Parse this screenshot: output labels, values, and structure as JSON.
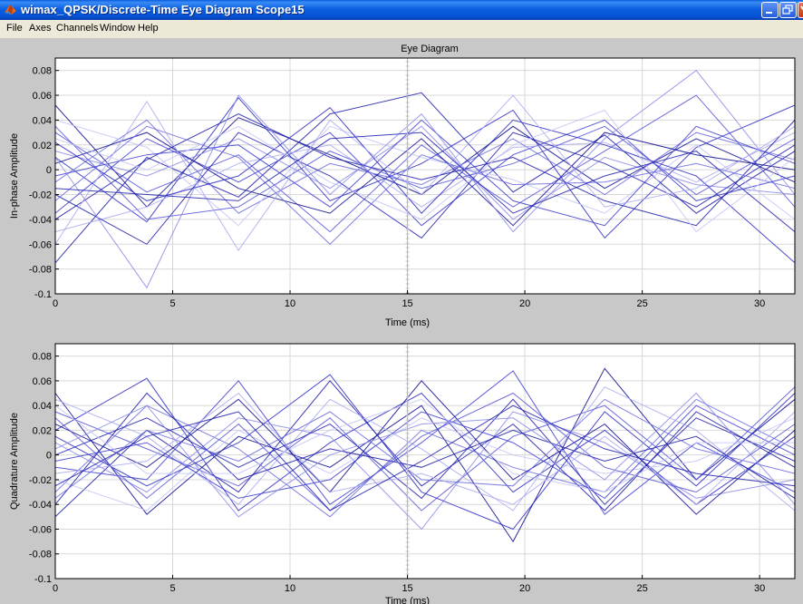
{
  "window": {
    "title": "wimax_QPSK/Discrete-Time Eye Diagram Scope15"
  },
  "menu": [
    "File",
    "Axes",
    "Channels",
    "Window",
    "Help"
  ],
  "figure": {
    "title": "Eye Diagram"
  },
  "chart_data": [
    {
      "type": "line",
      "title": "Eye Diagram",
      "xlabel": "Time (ms)",
      "ylabel": "In-phase Amplitude",
      "xlim": [
        0,
        31.5
      ],
      "ylim": [
        -0.1,
        0.09
      ],
      "xticks": [
        0,
        5,
        10,
        15,
        20,
        25,
        30
      ],
      "yticks": [
        -0.1,
        -0.08,
        -0.06,
        -0.04,
        -0.02,
        0,
        0.02,
        0.04,
        0.06,
        0.08
      ],
      "ytick_labels": [
        "-0.1",
        "-0.08",
        "-0.06",
        "-0.04",
        "-0.02",
        "0",
        "0.02",
        "0.04",
        "0.06",
        "0.08"
      ],
      "grid": true,
      "x": [
        0,
        3.9,
        7.8,
        11.7,
        15.6,
        19.5,
        23.4,
        27.3,
        31.5
      ],
      "series": [
        {
          "values": [
            0.052,
            -0.03,
            0.042,
            0.012,
            -0.02,
            0.035,
            -0.015,
            0.025,
            -0.01
          ]
        },
        {
          "values": [
            -0.075,
            0.01,
            -0.022,
            0.045,
            0.062,
            -0.018,
            0.028,
            -0.035,
            0.015
          ]
        },
        {
          "values": [
            0.01,
            -0.042,
            0.058,
            -0.025,
            0.005,
            0.048,
            -0.055,
            0.018,
            0.052
          ]
        },
        {
          "values": [
            -0.035,
            0.025,
            -0.01,
            0.03,
            -0.045,
            0.012,
            0.04,
            -0.025,
            -0.005
          ]
        },
        {
          "values": [
            0.03,
            -0.018,
            0.012,
            -0.05,
            0.02,
            -0.03,
            0.015,
            0.06,
            -0.03
          ]
        },
        {
          "values": [
            -0.01,
            0.04,
            -0.035,
            0.005,
            -0.012,
            0.025,
            -0.02,
            0.03,
            0.008
          ]
        },
        {
          "values": [
            0.015,
            -0.005,
            0.025,
            -0.015,
            0.035,
            -0.04,
            0.01,
            -0.012,
            -0.02
          ]
        },
        {
          "values": [
            -0.05,
            -0.03,
            0.005,
            0.02,
            -0.03,
            0.018,
            0.022,
            -0.01,
            0.03
          ]
        },
        {
          "values": [
            0.04,
            0.018,
            -0.045,
            0.035,
            0.01,
            -0.008,
            -0.035,
            0.02,
            -0.04
          ]
        },
        {
          "values": [
            -0.02,
            -0.06,
            0.03,
            -0.005,
            -0.055,
            0.03,
            0.005,
            -0.03,
            0.02
          ]
        },
        {
          "values": [
            0.005,
            0.03,
            -0.015,
            -0.035,
            0.025,
            -0.045,
            0.03,
            0.012,
            0.0
          ]
        },
        {
          "values": [
            -0.04,
            0.008,
            0.045,
            0.01,
            -0.008,
            0.01,
            -0.025,
            -0.045,
            0.04
          ]
        },
        {
          "values": [
            0.022,
            -0.025,
            -0.005,
            0.05,
            -0.035,
            0.04,
            0.02,
            -0.005,
            -0.075
          ]
        },
        {
          "values": [
            -0.005,
            0.012,
            0.02,
            -0.03,
            0.04,
            -0.025,
            -0.045,
            0.035,
            0.005
          ]
        },
        {
          "values": [
            0.035,
            -0.04,
            -0.03,
            0.015,
            -0.015,
            0.005,
            0.035,
            -0.02,
            0.025
          ]
        },
        {
          "values": [
            -0.025,
            0.035,
            0.01,
            -0.06,
            0.012,
            -0.012,
            -0.01,
            0.005,
            -0.015
          ]
        },
        {
          "values": [
            0.01,
            -0.095,
            0.06,
            -0.02,
            0.045,
            -0.05,
            0.025,
            0.08,
            -0.02
          ]
        },
        {
          "values": [
            -0.06,
            0.055,
            -0.065,
            0.04,
            -0.02,
            0.06,
            -0.03,
            -0.015,
            0.035
          ]
        },
        {
          "values": [
            0.025,
            0.0,
            0.035,
            -0.01,
            -0.04,
            0.02,
            0.048,
            -0.05,
            0.01
          ]
        },
        {
          "values": [
            -0.015,
            -0.02,
            -0.025,
            0.025,
            0.03,
            -0.035,
            -0.005,
            0.015,
            -0.05
          ]
        }
      ]
    },
    {
      "type": "line",
      "title": "",
      "xlabel": "Time (ms)",
      "ylabel": "Quadrature Amplitude",
      "xlim": [
        0,
        31.5
      ],
      "ylim": [
        -0.1,
        0.09
      ],
      "xticks": [
        0,
        5,
        10,
        15,
        20,
        25,
        30
      ],
      "yticks": [
        -0.1,
        -0.08,
        -0.06,
        -0.04,
        -0.02,
        0,
        0.02,
        0.04,
        0.06,
        0.08
      ],
      "ytick_labels": [
        "-0.1",
        "-0.08",
        "-0.06",
        "-0.04",
        "-0.02",
        "0",
        "0.02",
        "0.04",
        "0.06",
        "0.08"
      ],
      "grid": true,
      "x": [
        0,
        3.9,
        7.8,
        11.7,
        15.6,
        19.5,
        23.4,
        27.3,
        31.5
      ],
      "series": [
        {
          "values": [
            0.05,
            -0.048,
            0.015,
            -0.01,
            0.04,
            -0.07,
            0.07,
            -0.02,
            0.045
          ]
        },
        {
          "values": [
            -0.05,
            0.02,
            -0.03,
            0.06,
            -0.025,
            0.025,
            -0.045,
            0.035,
            -0.01
          ]
        },
        {
          "values": [
            0.02,
            0.062,
            -0.045,
            0.01,
            0.05,
            -0.03,
            0.02,
            -0.04,
            0.015
          ]
        },
        {
          "values": [
            -0.01,
            -0.02,
            0.06,
            -0.04,
            0.01,
            0.068,
            -0.048,
            0.01,
            -0.03
          ]
        },
        {
          "values": [
            0.035,
            0.005,
            -0.025,
            0.03,
            -0.045,
            0.015,
            0.04,
            -0.02,
            0.055
          ]
        },
        {
          "values": [
            -0.03,
            0.04,
            0.005,
            -0.05,
            0.02,
            -0.01,
            -0.03,
            0.045,
            0.005
          ]
        },
        {
          "values": [
            0.01,
            -0.03,
            0.03,
            0.015,
            -0.06,
            0.035,
            0.01,
            -0.035,
            -0.02
          ]
        },
        {
          "values": [
            0.045,
            0.015,
            -0.04,
            0.045,
            0.005,
            -0.045,
            0.055,
            0.02,
            -0.045
          ]
        },
        {
          "values": [
            -0.02,
            -0.045,
            0.02,
            -0.015,
            0.03,
            0.0,
            -0.015,
            -0.005,
            0.03
          ]
        },
        {
          "values": [
            0.0,
            0.03,
            -0.01,
            0.025,
            -0.035,
            0.045,
            -0.04,
            0.03,
            -0.005
          ]
        },
        {
          "values": [
            0.025,
            -0.01,
            0.045,
            -0.03,
            0.06,
            -0.02,
            0.025,
            -0.048,
            0.02
          ]
        },
        {
          "values": [
            -0.04,
            0.05,
            -0.02,
            0.005,
            -0.01,
            0.02,
            -0.005,
            0.015,
            -0.035
          ]
        },
        {
          "values": [
            0.015,
            -0.025,
            0.01,
            0.065,
            -0.03,
            -0.06,
            0.035,
            -0.025,
            0.05
          ]
        },
        {
          "values": [
            -0.005,
            0.01,
            -0.035,
            -0.02,
            0.035,
            0.01,
            -0.035,
            0.04,
            0.0
          ]
        },
        {
          "values": [
            0.03,
            -0.035,
            0.025,
            -0.045,
            0.015,
            0.05,
            -0.01,
            -0.03,
            0.025
          ]
        },
        {
          "values": [
            -0.035,
            0.02,
            -0.005,
            0.035,
            -0.02,
            -0.025,
            0.045,
            0.005,
            -0.015
          ]
        },
        {
          "values": [
            0.005,
            0.04,
            -0.05,
            0.0,
            0.025,
            0.03,
            -0.02,
            0.05,
            -0.04
          ]
        },
        {
          "values": [
            -0.015,
            -0.005,
            0.05,
            -0.03,
            -0.015,
            -0.04,
            0.015,
            -0.04,
            0.035
          ]
        },
        {
          "values": [
            0.04,
            -0.015,
            -0.015,
            0.02,
            0.045,
            -0.015,
            -0.03,
            0.01,
            0.01
          ]
        },
        {
          "values": [
            -0.025,
            0.015,
            0.035,
            -0.045,
            -0.005,
            0.04,
            0.005,
            -0.015,
            -0.025
          ]
        }
      ]
    }
  ]
}
